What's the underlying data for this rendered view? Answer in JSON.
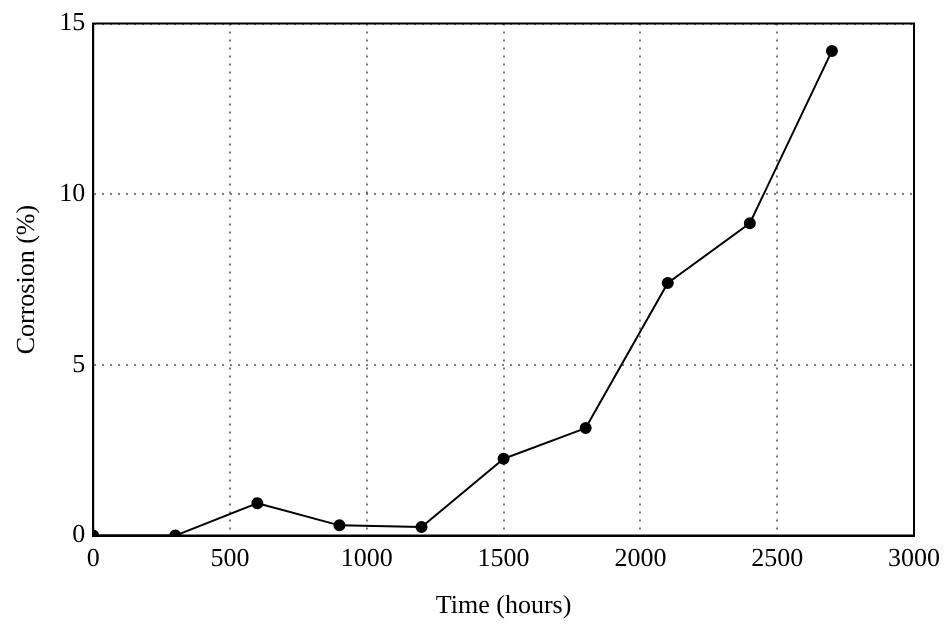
{
  "chart_data": {
    "type": "line",
    "xlabel": "Time (hours)",
    "ylabel": "Corrosion (%)",
    "x": [
      0,
      300,
      600,
      900,
      1200,
      1500,
      1800,
      2100,
      2400,
      2700
    ],
    "series": [
      {
        "color": "#000000",
        "values": [
          0,
          0,
          0.95,
          0.3,
          0.25,
          2.25,
          3.15,
          7.4,
          9.15,
          14.2
        ]
      }
    ],
    "xlim": [
      0,
      3000
    ],
    "xticks": [
      0,
      500,
      1000,
      1500,
      2000,
      2500,
      3000
    ],
    "ylim": [
      0,
      15
    ],
    "yticks": [
      0,
      5,
      10,
      15
    ],
    "grid": true,
    "legend": false,
    "marker": "circle",
    "line_style": "solid"
  }
}
